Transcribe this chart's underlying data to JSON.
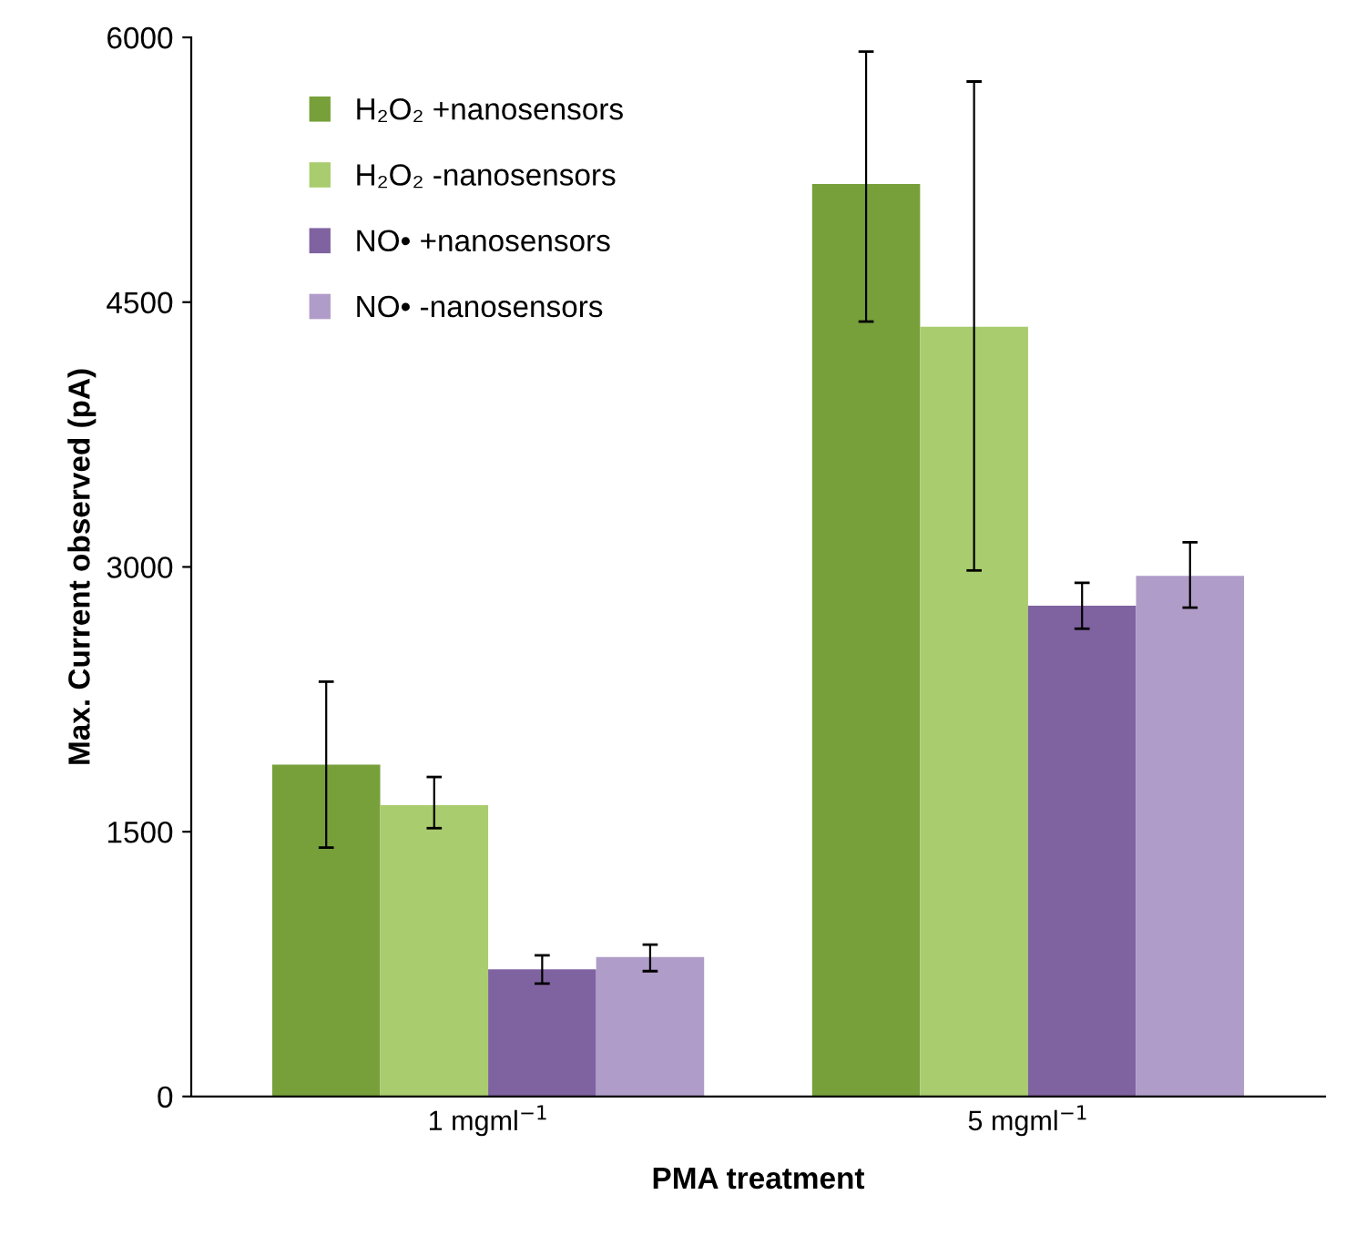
{
  "chart_data": {
    "type": "bar",
    "xlabel": "PMA treatment",
    "ylabel": "Max. Current observed (pA)",
    "categories": [
      "1 mgml$^{−1}$",
      "5 mgml$^{−1}$"
    ],
    "series": [
      {
        "name": "H₂O₂ +nanosensors",
        "color": "#77a03a",
        "values": [
          1880,
          5170
        ],
        "errors": [
          [
            1410,
            2350
          ],
          [
            4390,
            5920
          ]
        ]
      },
      {
        "name": "H₂O₂ -nanosensors",
        "color": "#a9cc6e",
        "values": [
          1650,
          4360
        ],
        "errors": [
          [
            1520,
            1810
          ],
          [
            2980,
            5750
          ]
        ]
      },
      {
        "name": "NO• +nanosensors",
        "color": "#7f62a0",
        "values": [
          720,
          2780
        ],
        "errors": [
          [
            640,
            800
          ],
          [
            2650,
            2910
          ]
        ]
      },
      {
        "name": "NO• -nanosensors",
        "color": "#b09cc8",
        "values": [
          790,
          2950
        ],
        "errors": [
          [
            710,
            860
          ],
          [
            2770,
            3140
          ]
        ]
      }
    ],
    "ylim": [
      0,
      6000
    ],
    "yticks": [
      0,
      1500,
      3000,
      4500,
      6000
    ],
    "grid": false,
    "legend": "top left"
  }
}
